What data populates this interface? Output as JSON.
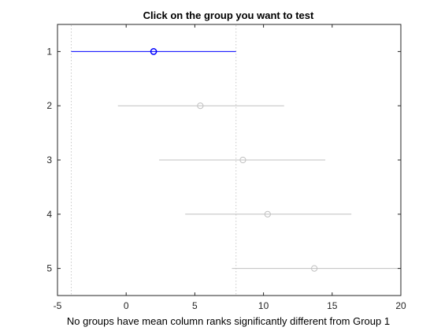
{
  "window": {
    "title": "Click on the group you want to test"
  },
  "status": {
    "message": "No groups have mean column ranks significantly different from Group 1"
  },
  "chart_data": {
    "type": "scatter",
    "title": "Click on the group you want to test",
    "xlabel": "No groups have mean column ranks significantly different from Group 1",
    "ylabel": "",
    "xlim": [
      -5,
      20
    ],
    "xticks": [
      -5,
      0,
      5,
      10,
      15,
      20
    ],
    "ylim": [
      0.5,
      5.5
    ],
    "groups": [
      "1",
      "2",
      "3",
      "4",
      "5"
    ],
    "series": [
      {
        "group": "1",
        "mean": 2.0,
        "ci_low": -4.0,
        "ci_high": 8.0,
        "selected": true
      },
      {
        "group": "2",
        "mean": 5.4,
        "ci_low": -0.6,
        "ci_high": 11.5,
        "selected": false
      },
      {
        "group": "3",
        "mean": 8.5,
        "ci_low": 2.4,
        "ci_high": 14.5,
        "selected": false
      },
      {
        "group": "4",
        "mean": 10.3,
        "ci_low": 4.3,
        "ci_high": 16.4,
        "selected": false
      },
      {
        "group": "5",
        "mean": 13.7,
        "ci_low": 7.7,
        "ci_high": 20.0,
        "selected": false
      }
    ],
    "reference_lines": [
      -4.0,
      8.0
    ],
    "grid": false,
    "colors": {
      "selected": "#0000ff",
      "other": "#c0c0c0",
      "reference": "#c8c8c8",
      "axis": "#262626"
    }
  }
}
